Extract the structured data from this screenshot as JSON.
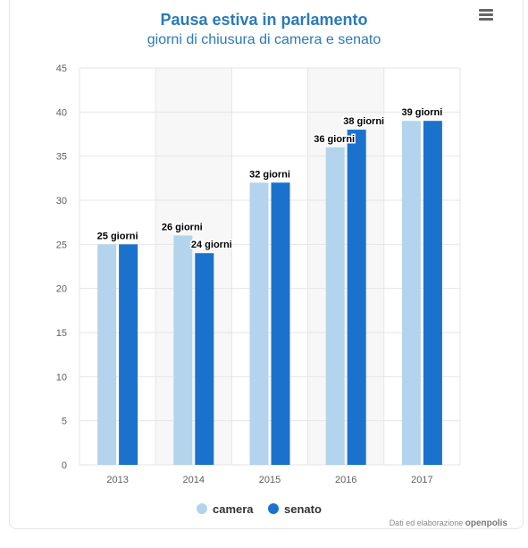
{
  "header": {
    "title": "Pausa estiva in parlamento",
    "subtitle": "giorni di chiusura di camera e senato"
  },
  "credits": {
    "prefix": "Dati ed elaborazione",
    "brand": "openpolis"
  },
  "colors": {
    "camera": "#b3d4ec",
    "senato": "#1b72cc",
    "title": "#2a7ab9",
    "plot_band": "#f7f7f7",
    "grid": "#e6e6e6"
  },
  "chart_data": {
    "type": "bar",
    "categories": [
      "2013",
      "2014",
      "2015",
      "2016",
      "2017"
    ],
    "series": [
      {
        "name": "camera",
        "values": [
          25,
          26,
          32,
          36,
          39
        ]
      },
      {
        "name": "senato",
        "values": [
          25,
          24,
          32,
          38,
          39
        ]
      }
    ],
    "data_labels": [
      {
        "category": "2013",
        "text": "25 giorni"
      },
      {
        "category": "2014",
        "series": "camera",
        "text": "26 giorni"
      },
      {
        "category": "2014",
        "series": "senato",
        "text": "24 giorni"
      },
      {
        "category": "2015",
        "text": "32 giorni"
      },
      {
        "category": "2016",
        "series": "camera",
        "text": "36 giorni"
      },
      {
        "category": "2016",
        "series": "senato",
        "text": "38 giorni"
      },
      {
        "category": "2017",
        "text": "39 giorni"
      }
    ],
    "ylim": [
      0,
      45
    ],
    "yticks": [
      0,
      5,
      10,
      15,
      20,
      25,
      30,
      35,
      40,
      45
    ],
    "grid": true,
    "legend": {
      "position": "bottom-center"
    }
  }
}
